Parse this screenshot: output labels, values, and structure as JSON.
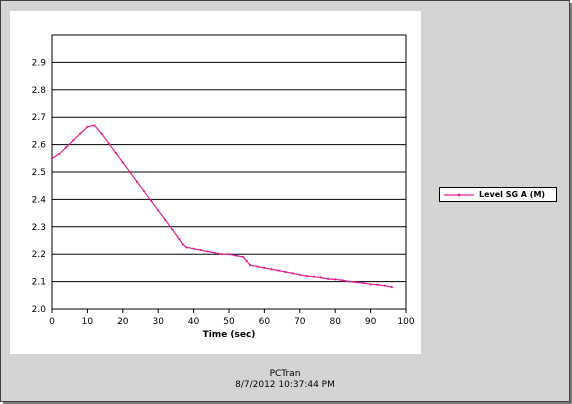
{
  "app": {
    "name": "PCTran",
    "timestamp": "8/7/2012 10:37:44 PM"
  },
  "colors": {
    "series": "#e02090",
    "frame": "#d4d4d4",
    "plot_bg": "#ffffff"
  },
  "chart_data": {
    "type": "line",
    "title": "",
    "xlabel": "Time (sec)",
    "ylabel": "",
    "xlim": [
      0,
      100
    ],
    "ylim": [
      2.0,
      3.0
    ],
    "x_ticks": [
      "0",
      "10",
      "20",
      "30",
      "40",
      "50",
      "60",
      "70",
      "80",
      "90",
      "100"
    ],
    "y_ticks": [
      "2.0",
      "2.1",
      "2.2",
      "2.3",
      "2.4",
      "2.5",
      "2.6",
      "2.7",
      "2.8",
      "2.9"
    ],
    "grid": "horizontal",
    "legend_position": "right",
    "series": [
      {
        "name": "Level SG A (M)",
        "x": [
          0,
          2,
          4,
          6,
          8,
          10,
          12,
          14,
          16,
          18,
          20,
          22,
          24,
          26,
          28,
          30,
          32,
          34,
          36,
          37,
          38,
          40,
          42,
          44,
          46,
          48,
          50,
          52,
          54,
          55,
          56,
          58,
          60,
          62,
          64,
          66,
          68,
          70,
          72,
          74,
          76,
          78,
          80,
          82,
          84,
          86,
          88,
          90,
          92,
          94,
          96
        ],
        "y": [
          2.55,
          2.565,
          2.59,
          2.615,
          2.64,
          2.665,
          2.67,
          2.64,
          2.605,
          2.57,
          2.535,
          2.5,
          2.465,
          2.43,
          2.395,
          2.36,
          2.325,
          2.29,
          2.255,
          2.235,
          2.225,
          2.22,
          2.215,
          2.21,
          2.205,
          2.2,
          2.2,
          2.195,
          2.19,
          2.175,
          2.16,
          2.155,
          2.15,
          2.145,
          2.14,
          2.135,
          2.13,
          2.125,
          2.12,
          2.118,
          2.115,
          2.11,
          2.108,
          2.105,
          2.1,
          2.097,
          2.095,
          2.09,
          2.088,
          2.085,
          2.08
        ]
      }
    ]
  }
}
